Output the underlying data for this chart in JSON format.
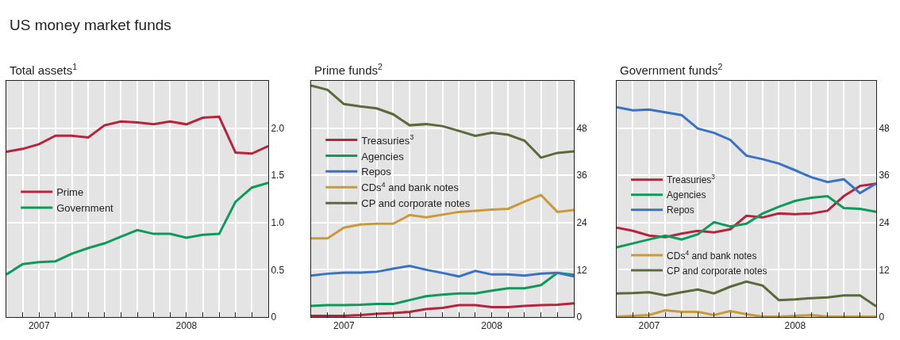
{
  "chart_data": [
    {
      "type": "line",
      "title": "US money market funds",
      "subtitle": "Total assets$^{1}$",
      "legend": "left",
      "grid": true,
      "marker": "none",
      "line_style": "solid",
      "categories": [
        null,
        null,
        "2007",
        null,
        null,
        null,
        null,
        null,
        null,
        null,
        null,
        "2008",
        null,
        null,
        null,
        null,
        null
      ],
      "ylim": [
        0,
        2.5
      ],
      "yticks": [
        0,
        0.5,
        {
          "value": 1,
          "label": "1.0"
        },
        1.5,
        {
          "value": 2,
          "label": "2.0"
        }
      ],
      "series": [
        {
          "name": "Prime",
          "color": "#b5253d",
          "values": [
            1.75,
            1.78,
            1.83,
            1.92,
            1.92,
            1.9,
            2.03,
            2.07,
            2.06,
            2.04,
            2.07,
            2.04,
            2.11,
            2.12,
            1.74,
            1.73,
            1.81
          ]
        },
        {
          "name": "Government",
          "color": "#0e9a5a",
          "values": [
            0.45,
            0.56,
            0.58,
            0.59,
            0.67,
            0.73,
            0.78,
            0.85,
            0.92,
            0.88,
            0.88,
            0.84,
            0.87,
            0.88,
            1.22,
            1.37,
            1.42
          ]
        }
      ]
    },
    {
      "type": "line",
      "subtitle": "Prime funds$^{2}$",
      "legend": "left",
      "grid": true,
      "marker": "none",
      "line_style": "solid",
      "categories": [
        null,
        null,
        "2007",
        null,
        null,
        null,
        null,
        null,
        null,
        null,
        null,
        "2008",
        null,
        null,
        null,
        null,
        null
      ],
      "ylim": [
        0,
        60
      ],
      "yticks": [
        0,
        12,
        24,
        36,
        48
      ],
      "series": [
        {
          "name": "Treasuries$^{3}$",
          "color": "#b5253d",
          "values": [
            0.3,
            0.3,
            0.3,
            0.5,
            0.8,
            1.0,
            1.3,
            2.0,
            2.3,
            3.0,
            3.0,
            2.5,
            2.5,
            2.8,
            3.0,
            3.1,
            3.5
          ]
        },
        {
          "name": "Agencies",
          "color": "#0e9a5a",
          "values": [
            2.8,
            3.0,
            3.0,
            3.1,
            3.3,
            3.3,
            4.3,
            5.3,
            5.7,
            6.0,
            6.0,
            6.7,
            7.3,
            7.3,
            8.1,
            11.2,
            10.7
          ]
        },
        {
          "name": "Repos",
          "color": "#3b73c4",
          "values": [
            10.5,
            11.0,
            11.3,
            11.3,
            11.5,
            12.3,
            13.0,
            12.0,
            11.2,
            10.3,
            11.7,
            10.8,
            10.8,
            10.5,
            11.0,
            11.2,
            10.3
          ]
        },
        {
          "name": "CDs$^{4}$ and bank notes",
          "color": "#c99a3c",
          "values": [
            20.0,
            20.0,
            22.7,
            23.5,
            23.7,
            23.7,
            25.9,
            25.3,
            26.0,
            26.7,
            27.0,
            27.3,
            27.5,
            29.3,
            31.0,
            26.7,
            27.2
          ]
        },
        {
          "name": "CP and corporate notes",
          "color": "#5a6a3a",
          "values": [
            58.8,
            57.7,
            54.1,
            53.5,
            53.0,
            51.5,
            48.7,
            49.0,
            48.5,
            47.3,
            46.0,
            46.8,
            46.3,
            44.8,
            40.5,
            41.7,
            42.1
          ]
        }
      ]
    },
    {
      "type": "line",
      "subtitle": "Government funds$^{2}$",
      "legend": "left",
      "grid": true,
      "marker": "none",
      "line_style": "solid",
      "categories": [
        null,
        null,
        "2007",
        null,
        null,
        null,
        null,
        null,
        null,
        null,
        null,
        "2008",
        null,
        null,
        null,
        null,
        null
      ],
      "ylim": [
        0,
        60
      ],
      "yticks": [
        0,
        12,
        24,
        36,
        48
      ],
      "series": [
        {
          "name": "Treasuries$^{3}$",
          "color": "#b5253d",
          "values": [
            22.7,
            21.9,
            20.7,
            20.3,
            21.2,
            21.9,
            21.5,
            22.3,
            25.7,
            25.3,
            26.3,
            26.1,
            26.3,
            27.0,
            30.7,
            33.3,
            33.9
          ]
        },
        {
          "name": "Agencies",
          "color": "#0e9a5a",
          "values": [
            17.7,
            18.7,
            19.7,
            20.7,
            19.7,
            21.0,
            24.1,
            23.0,
            23.7,
            26.3,
            28.0,
            29.5,
            30.3,
            30.7,
            27.7,
            27.5,
            26.7
          ]
        },
        {
          "name": "Repos",
          "color": "#3b73c4",
          "values": [
            53.3,
            52.5,
            52.7,
            52.0,
            51.3,
            47.9,
            46.8,
            45.0,
            41.0,
            40.1,
            39.0,
            37.3,
            35.5,
            34.3,
            35.0,
            31.5,
            33.9
          ]
        },
        {
          "name": "CDs$^{4}$ and bank notes",
          "color": "#c99a3c",
          "values": [
            0.1,
            0.3,
            0.5,
            1.7,
            1.3,
            1.3,
            0.5,
            1.5,
            0.7,
            0.1,
            0.1,
            0.3,
            0.5,
            0.1,
            0.1,
            0.1,
            0.1
          ]
        },
        {
          "name": "CP and corporate notes",
          "color": "#5a6a3a",
          "values": [
            6.0,
            6.1,
            6.3,
            5.5,
            6.3,
            7.0,
            6.0,
            7.7,
            9.0,
            8.0,
            4.3,
            4.5,
            4.8,
            5.0,
            5.5,
            5.5,
            2.7
          ]
        }
      ]
    }
  ]
}
